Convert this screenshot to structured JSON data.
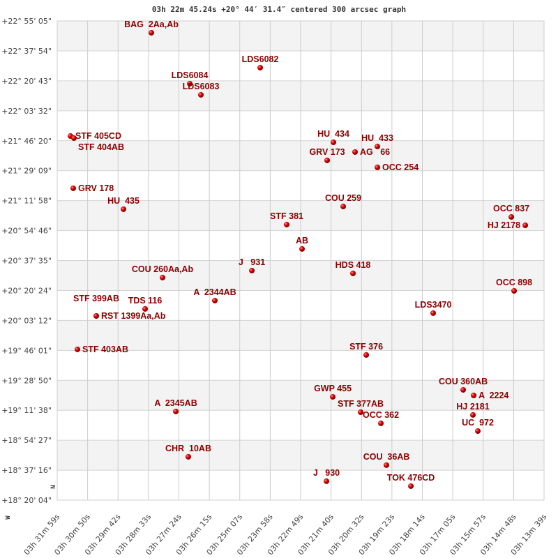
{
  "chart_data": {
    "type": "scatter",
    "title": "03h 22m 45.24s +20° 44′ 31.4″ centered 300 arcsec graph",
    "xlabel": "",
    "ylabel": "",
    "x_units": "RA minutes past 03h (decreasing left to right)",
    "xlim": [
      31.983,
      13.65
    ],
    "ylim": [
      18.3344,
      22.9181
    ],
    "grid": true,
    "banded_background": true,
    "x_ticks": [
      "03h 31m 59s",
      "03h 30m 50s",
      "03h 29m 42s",
      "03h 28m 33s",
      "03h 27m 24s",
      "03h 26m 15s",
      "03h 25m 07s",
      "03h 23m 58s",
      "03h 22m 49s",
      "03h 21m 40s",
      "03h 20m 32s",
      "03h 19m 23s",
      "03h 18m 14s",
      "03h 17m 05s",
      "03h 15m 57s",
      "03h 14m 48s",
      "03h 13m 39s"
    ],
    "y_ticks": [
      "+22° 55' 05\"",
      "+22° 37' 54\"",
      "+22° 20' 43\"",
      "+22° 03' 32\"",
      "+21° 46' 20\"",
      "+21° 29' 09\"",
      "+21° 11' 58\"",
      "+20° 54' 46\"",
      "+20° 37' 35\"",
      "+20° 20' 24\"",
      "+20° 03' 12\"",
      "+19° 46' 01\"",
      "+19° 28' 50\"",
      "+19° 11' 38\"",
      "+18° 54' 27\"",
      "+18° 37' 16\"",
      "+18° 20' 04\""
    ],
    "compass": {
      "north": "N",
      "west": "W"
    },
    "point_color": "#dd0000",
    "label_color": "#8b0000",
    "points": [
      {
        "name": "BAG  2Aa,Ab",
        "ra": 28.437,
        "dec": 22.805
      },
      {
        "name": "LDS6082",
        "ra": 24.339,
        "dec": 22.471
      },
      {
        "name": "LDS6084",
        "ra": 26.992,
        "dec": 22.318
      },
      {
        "name": "LDS6083",
        "ra": 26.572,
        "dec": 22.211
      },
      {
        "name": "STF 405CD",
        "ra": 31.484,
        "dec": 21.817
      },
      {
        "name": "STF 404AB",
        "ra": 31.353,
        "dec": 21.797
      },
      {
        "name": "HU  434",
        "ra": 21.581,
        "dec": 21.757
      },
      {
        "name": "AG   66",
        "ra": 20.767,
        "dec": 21.664
      },
      {
        "name": "HU  433",
        "ra": 19.926,
        "dec": 21.717
      },
      {
        "name": "GRV 173",
        "ra": 21.817,
        "dec": 21.584
      },
      {
        "name": "OCC 254",
        "ra": 19.926,
        "dec": 21.517
      },
      {
        "name": "GRV 178",
        "ra": 31.379,
        "dec": 21.317
      },
      {
        "name": "HU  435",
        "ra": 29.488,
        "dec": 21.117
      },
      {
        "name": "COU 259",
        "ra": 21.213,
        "dec": 21.143
      },
      {
        "name": "STF 381",
        "ra": 23.341,
        "dec": 20.97
      },
      {
        "name": "OCC 837",
        "ra": 14.883,
        "dec": 21.043
      },
      {
        "name": "HJ 2178",
        "ra": 14.357,
        "dec": 20.963
      },
      {
        "name": "AB",
        "ra": 22.763,
        "dec": 20.737
      },
      {
        "name": "J   931",
        "ra": 24.654,
        "dec": 20.53
      },
      {
        "name": "HDS 418",
        "ra": 20.846,
        "dec": 20.503
      },
      {
        "name": "COU 260Aa,Ab",
        "ra": 28.017,
        "dec": 20.463
      },
      {
        "name": "A  2344AB",
        "ra": 26.047,
        "dec": 20.243
      },
      {
        "name": "OCC 898",
        "ra": 14.778,
        "dec": 20.336
      },
      {
        "name": "TDS 116",
        "ra": 28.673,
        "dec": 20.163
      },
      {
        "name": "RST 1399Aa,Ab",
        "ra": 30.512,
        "dec": 20.096
      },
      {
        "name": "STF 399AB",
        "ra": 30.512,
        "dec": 20.096
      },
      {
        "name": "LDS3470",
        "ra": 17.825,
        "dec": 20.123
      },
      {
        "name": "STF 403AB",
        "ra": 31.221,
        "dec": 19.776
      },
      {
        "name": "STF 376",
        "ra": 20.346,
        "dec": 19.723
      },
      {
        "name": "COU 360AB",
        "ra": 16.695,
        "dec": 19.389
      },
      {
        "name": "A  2224",
        "ra": 16.301,
        "dec": 19.336
      },
      {
        "name": "GWP 455",
        "ra": 21.607,
        "dec": 19.322
      },
      {
        "name": "STF 377AB",
        "ra": 20.557,
        "dec": 19.175
      },
      {
        "name": "A  2345AB",
        "ra": 27.517,
        "dec": 19.182
      },
      {
        "name": "HJ 2181",
        "ra": 16.328,
        "dec": 19.149
      },
      {
        "name": "OCC 362",
        "ra": 19.795,
        "dec": 19.069
      },
      {
        "name": "UC  972",
        "ra": 16.144,
        "dec": 18.995
      },
      {
        "name": "CHR  10AB",
        "ra": 27.045,
        "dec": 18.749
      },
      {
        "name": "COU  36AB",
        "ra": 19.585,
        "dec": 18.669
      },
      {
        "name": "J   930",
        "ra": 21.844,
        "dec": 18.515
      },
      {
        "name": "TOK 476CD",
        "ra": 18.665,
        "dec": 18.468
      }
    ]
  }
}
